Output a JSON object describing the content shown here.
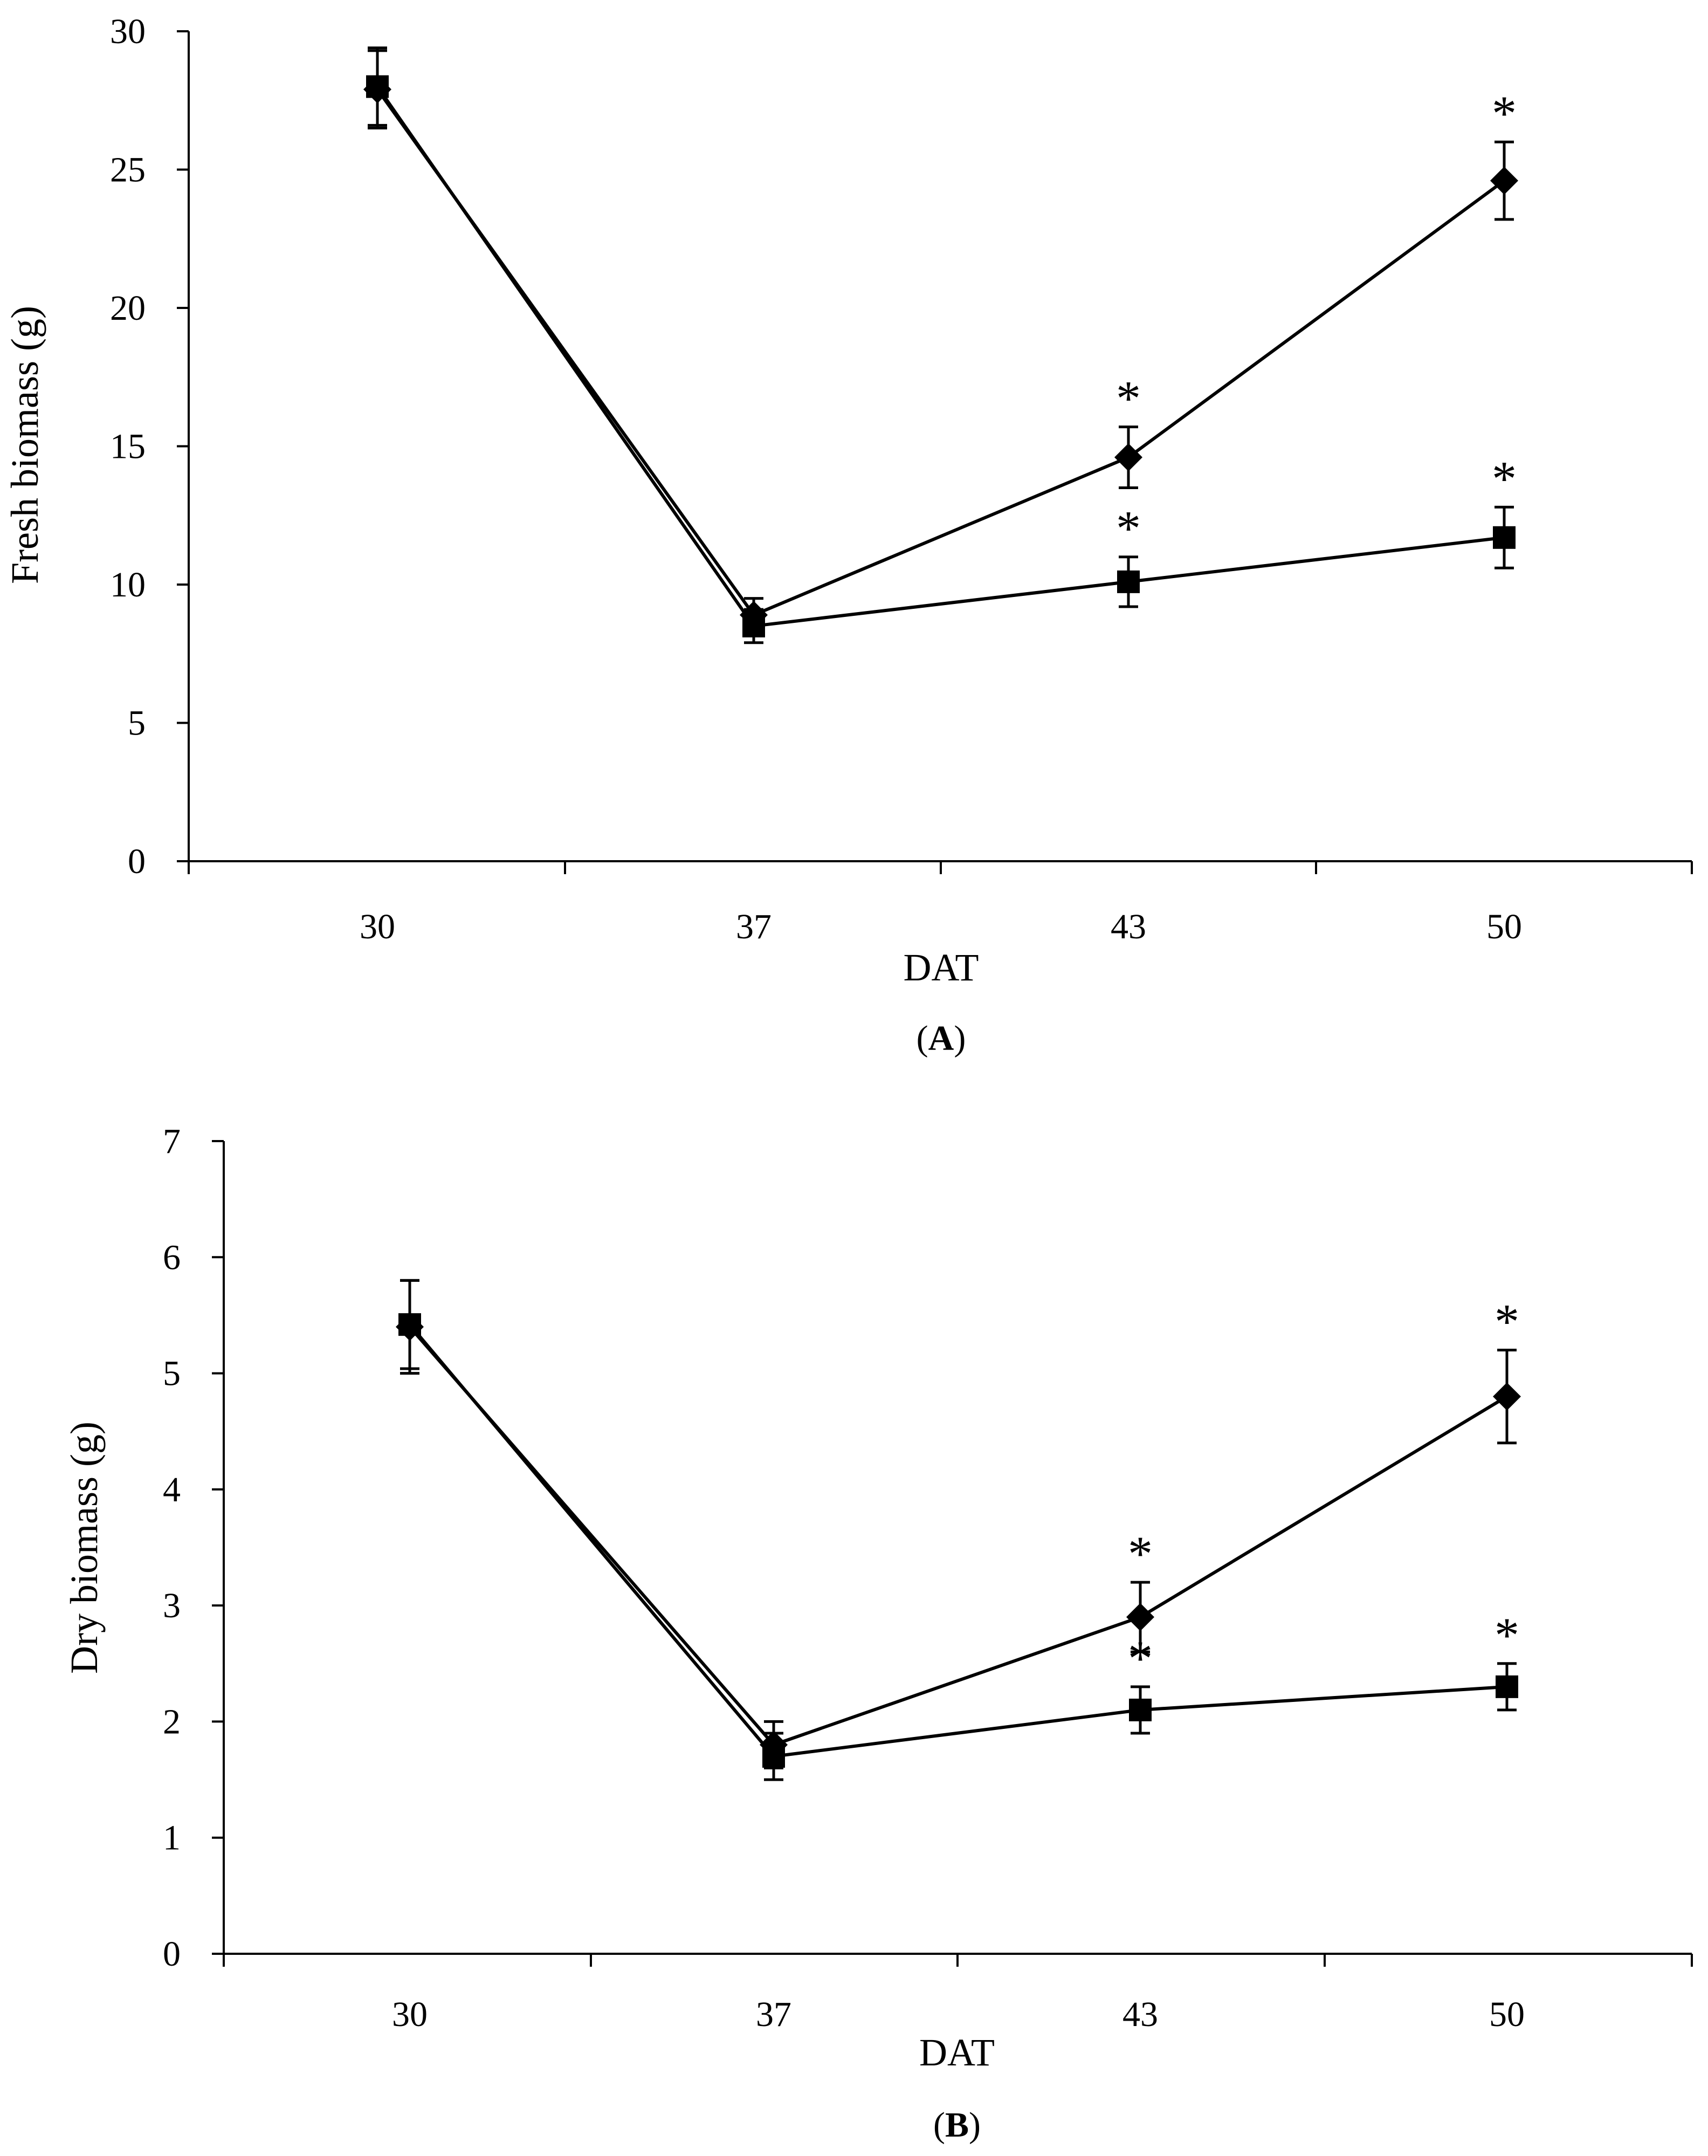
{
  "chart_data": [
    {
      "type": "line",
      "panel_label": "A",
      "xlabel": "DAT",
      "ylabel": "Fresh biomass (g)",
      "categories": [
        "30",
        "37",
        "43",
        "50"
      ],
      "ylim": [
        0,
        30
      ],
      "yticks": [
        0,
        5,
        10,
        15,
        20,
        25,
        30
      ],
      "grid": false,
      "series": [
        {
          "name": "diamond",
          "marker": "diamond",
          "values": [
            27.9,
            8.9,
            14.6,
            24.6
          ],
          "errors": [
            1.4,
            0.6,
            1.1,
            1.4
          ],
          "annotations": [
            "",
            "",
            "*",
            "*"
          ]
        },
        {
          "name": "square",
          "marker": "square",
          "values": [
            28.0,
            8.5,
            10.1,
            11.7
          ],
          "errors": [
            1.4,
            0.6,
            0.9,
            1.1
          ],
          "annotations": [
            "",
            "",
            "*",
            "*"
          ]
        }
      ]
    },
    {
      "type": "line",
      "panel_label": "B",
      "xlabel": "DAT",
      "ylabel": "Dry biomass (g)",
      "categories": [
        "30",
        "37",
        "43",
        "50"
      ],
      "ylim": [
        0,
        7
      ],
      "yticks": [
        0,
        1,
        2,
        3,
        4,
        5,
        6,
        7
      ],
      "grid": false,
      "series": [
        {
          "name": "diamond",
          "marker": "diamond",
          "values": [
            5.4,
            1.8,
            2.9,
            4.8
          ],
          "errors": [
            0.4,
            0.2,
            0.3,
            0.4
          ],
          "annotations": [
            "",
            "",
            "*",
            "*"
          ]
        },
        {
          "name": "square",
          "marker": "square",
          "values": [
            5.42,
            1.7,
            2.1,
            2.3
          ],
          "errors": [
            0.38,
            0.2,
            0.2,
            0.2
          ],
          "annotations": [
            "",
            "",
            "*",
            "*"
          ]
        }
      ]
    }
  ]
}
